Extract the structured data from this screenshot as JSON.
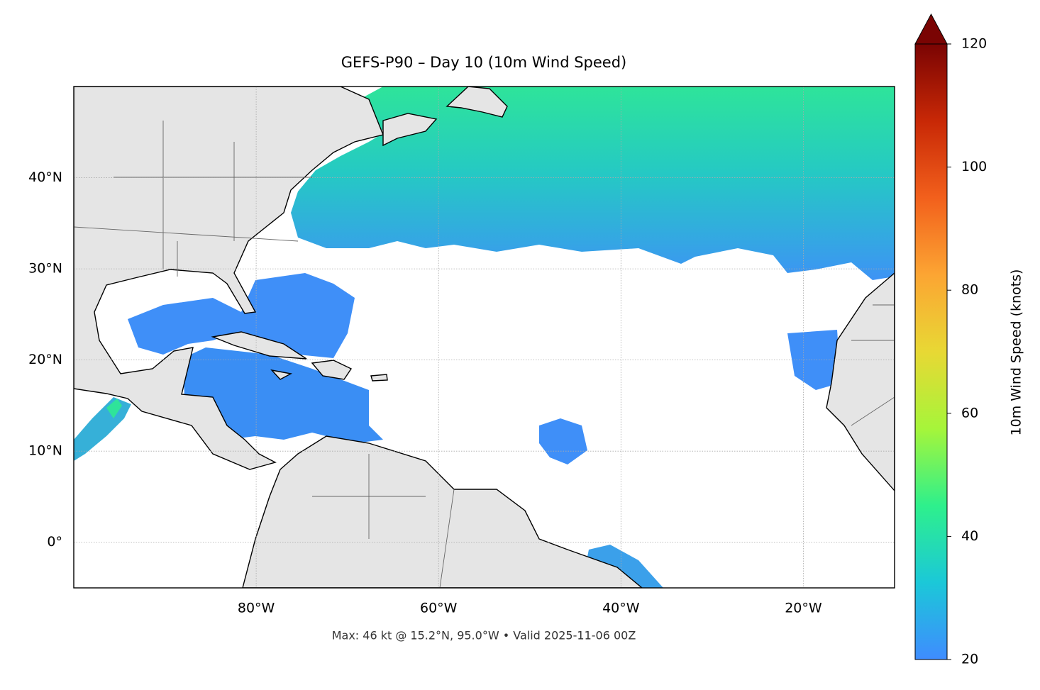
{
  "chart_data": {
    "type": "map",
    "title": "GEFS-P90 – Day 10 (10m Wind Speed)",
    "footnote": "Max: 46 kt @ 15.2°N, 95.0°W • Valid 2025-11-06 00Z",
    "xlim": [
      -100,
      -10
    ],
    "ylim": [
      -5,
      50
    ],
    "xticks": [
      {
        "value": -80,
        "label": "80°W"
      },
      {
        "value": -60,
        "label": "60°W"
      },
      {
        "value": -40,
        "label": "40°W"
      },
      {
        "value": -20,
        "label": "20°W"
      }
    ],
    "yticks": [
      {
        "value": 0,
        "label": "0°"
      },
      {
        "value": 10,
        "label": "10°N"
      },
      {
        "value": 20,
        "label": "20°N"
      },
      {
        "value": 30,
        "label": "30°N"
      },
      {
        "value": 40,
        "label": "40°N"
      }
    ],
    "grid": true,
    "colorbar": {
      "label": "10m Wind Speed (knots)",
      "lim": [
        20,
        120
      ],
      "ticks": [
        20,
        40,
        60,
        80,
        100,
        120
      ],
      "extend": "max",
      "colors": [
        "#3f8cff",
        "#1bc8d8",
        "#2ef08c",
        "#a6f53a",
        "#e8d834",
        "#fca533",
        "#f2601c",
        "#c82806",
        "#7a0403"
      ]
    }
  }
}
